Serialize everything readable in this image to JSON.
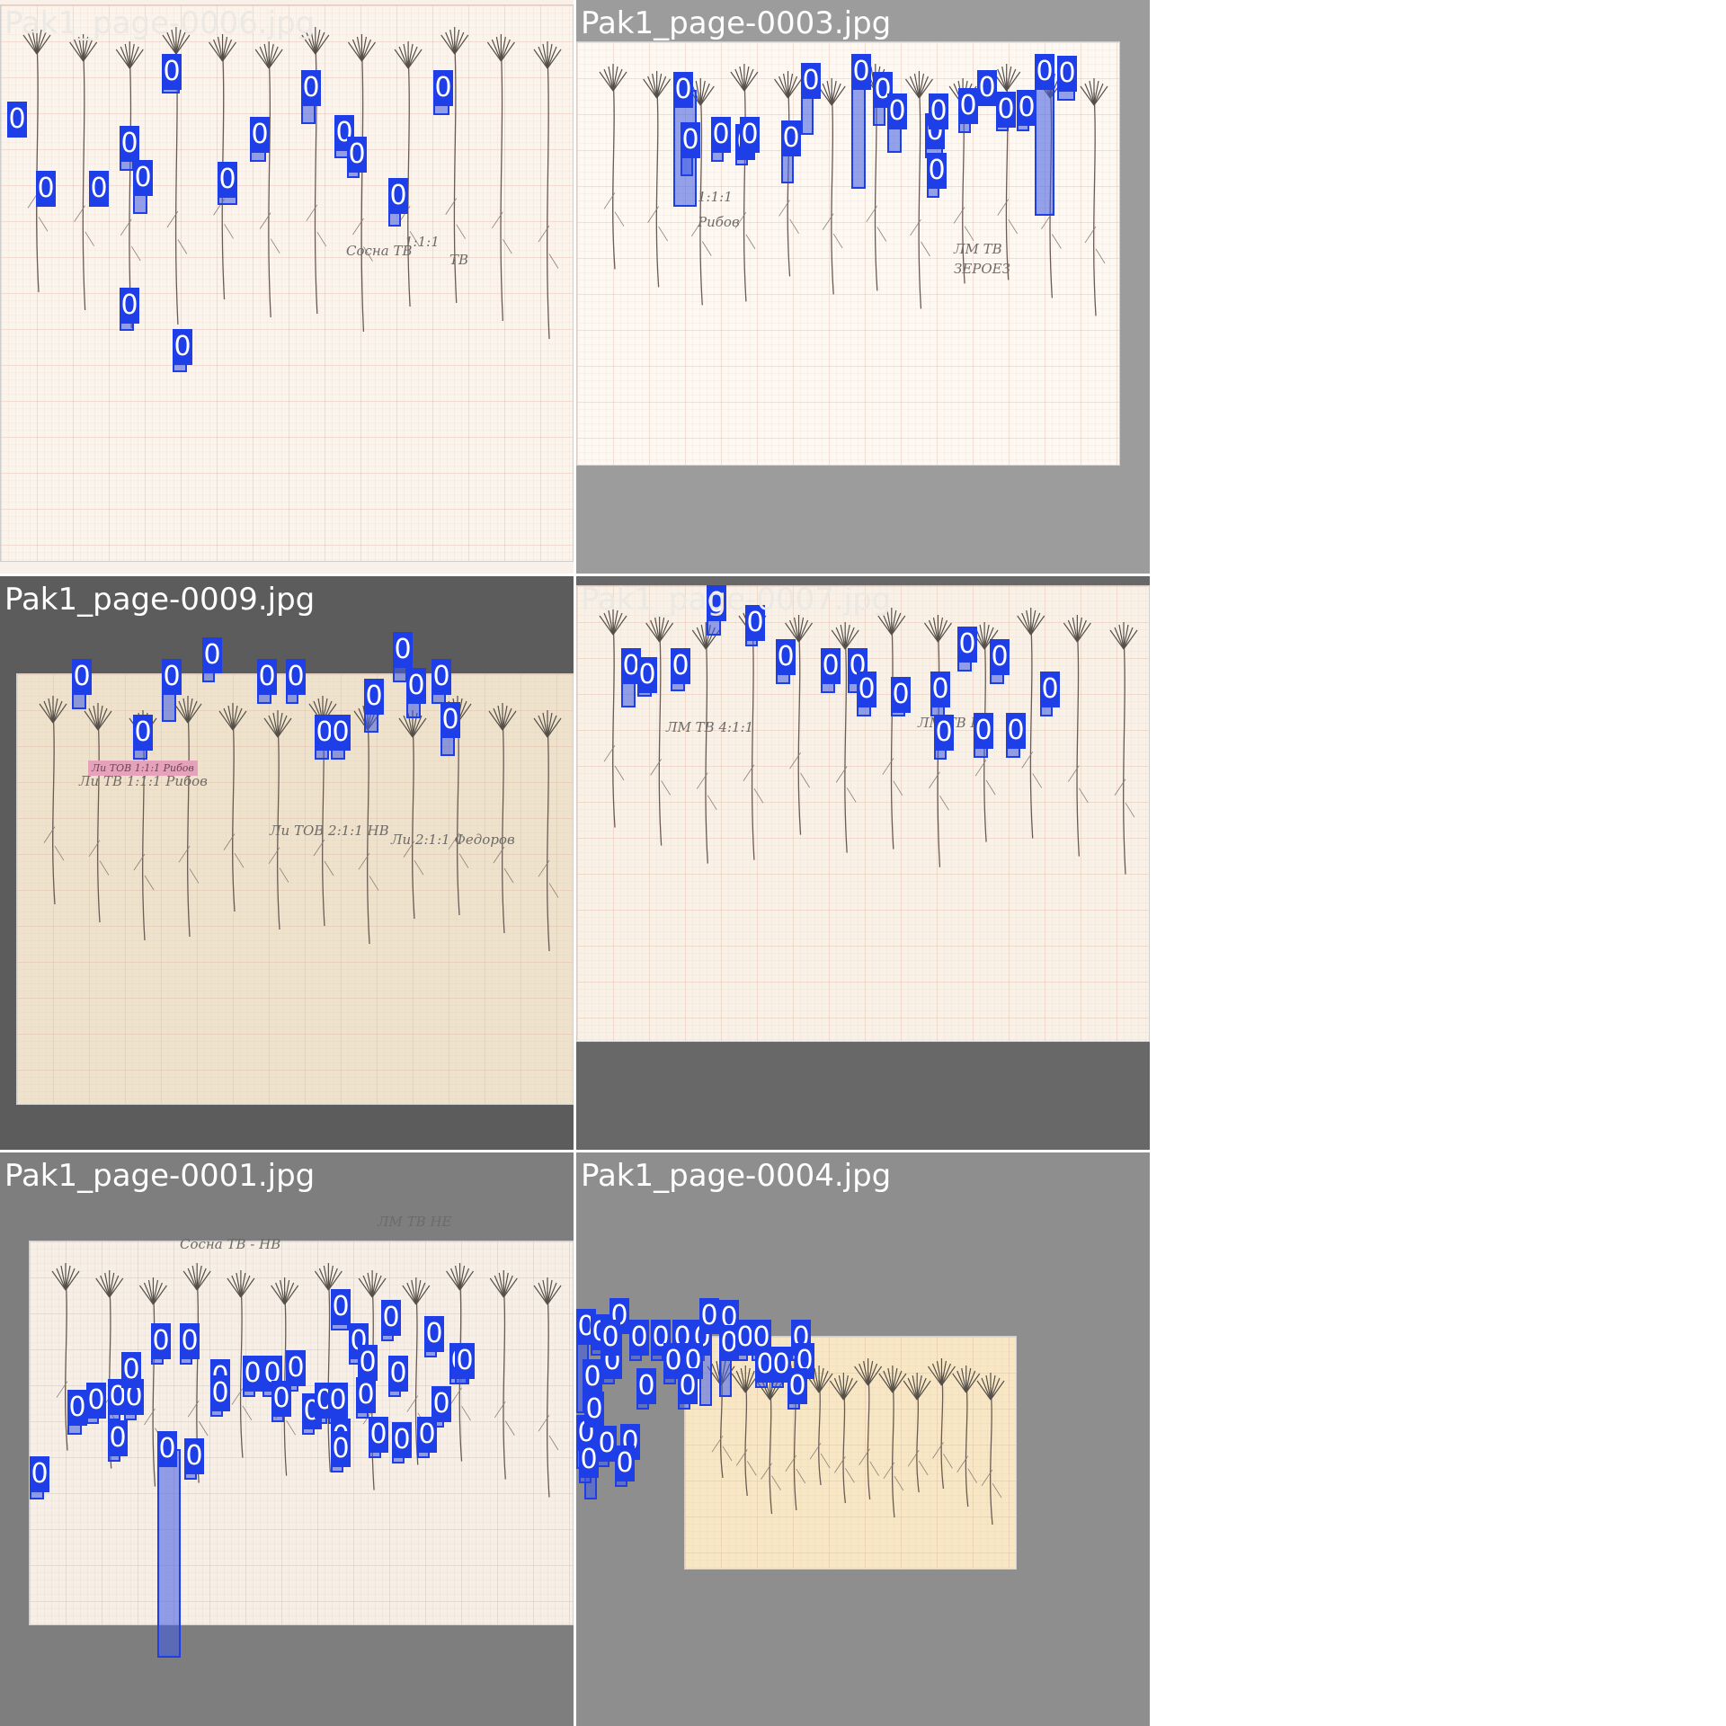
{
  "colors": {
    "box_fill": "#3c5ae6",
    "box_edge": "#1e3ee8",
    "tag_bg": "#1e3ee8",
    "tag_text": "#ffffff",
    "white_title": "#ffffff",
    "faint_title": "#ece9e4",
    "grid_line": "#e3b9a4"
  },
  "tiles": [
    {
      "title": "Pak1_page-0006.jpg",
      "bg": "#f9f1e9",
      "title_color": "#ece9e4",
      "detection_class": "0",
      "handwriting": [
        "Сосна ТВ",
        "1:1:1",
        "ТВ"
      ],
      "pink_label": ""
    },
    {
      "title": "Pak1_page-0003.jpg",
      "bg": "#9c9c9c",
      "title_color": "#ffffff",
      "detection_class": "0",
      "handwriting": [
        "1:1:1",
        "Рибов",
        "ЛМ ТВ",
        "ЗЕРОЕЗ"
      ],
      "pink_label": ""
    },
    {
      "title": "Pak1_page-0009.jpg",
      "bg": "#5c5c5c",
      "title_color": "#ffffff",
      "detection_class": "0",
      "handwriting": [
        "Ли ТВ 1:1:1 Рибов",
        "Ли ТОВ 2:1:1 НВ",
        "Ли 2:1:1 Федоров"
      ],
      "pink_label": "Ли ТОВ 1:1:1 Рибов"
    },
    {
      "title": "Pak1_page-0007.jpg",
      "bg": "#686868",
      "title_color": "#ece9e4",
      "detection_class": "0",
      "handwriting": [
        "ЛМ ТВ 4:1:1",
        "ЛМ ТВ НВ"
      ],
      "pink_label": ""
    },
    {
      "title": "Pak1_page-0001.jpg",
      "bg": "#7e7e7e",
      "title_color": "#ffffff",
      "detection_class": "0",
      "handwriting": [
        "Сосна ТВ - НВ",
        "ЛМ ТВ НЕ"
      ],
      "pink_label": ""
    },
    {
      "title": "Pak1_page-0004.jpg",
      "bg": "#8e8e8e",
      "title_color": "#ffffff",
      "detection_class": "0",
      "handwriting": [],
      "pink_label": ""
    }
  ]
}
